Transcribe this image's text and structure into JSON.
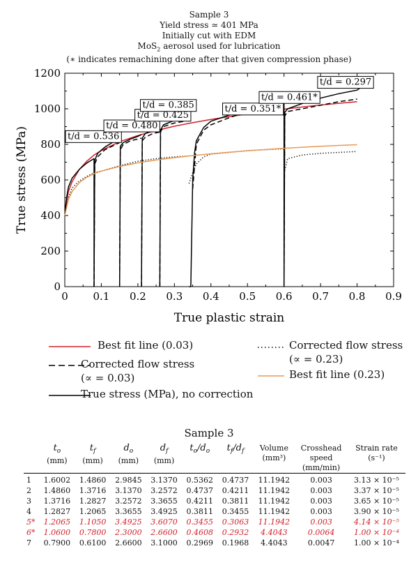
{
  "header": {
    "line1": "Sample 3",
    "line2": "Yield stress ≃ 401 MPa",
    "line3": "Initially cut with EDM",
    "line4_pre": "MoS",
    "line4_sub": "2",
    "line4_post": " aerosol used for lubrication",
    "line5": "(∗ indicates remachining done after that given compression phase)"
  },
  "chart_data": {
    "type": "line",
    "xlabel": "True plastic strain",
    "ylabel": "True stress (MPa)",
    "xlim": [
      0,
      0.9
    ],
    "ylim": [
      0,
      1200
    ],
    "xticks": [
      "0",
      "0.1",
      "0.2",
      "0.3",
      "0.4",
      "0.5",
      "0.6",
      "0.7",
      "0.8",
      "0.9"
    ],
    "yticks": [
      "0",
      "200",
      "400",
      "600",
      "800",
      "1000",
      "1200"
    ],
    "grid": false,
    "annotations": [
      {
        "text": "t/d = 0.536",
        "x": 0.0,
        "y": 830
      },
      {
        "text": "t/d = 0.480",
        "x": 0.105,
        "y": 890
      },
      {
        "text": "t/d = 0.425",
        "x": 0.19,
        "y": 950
      },
      {
        "text": "t/d = 0.385",
        "x": 0.205,
        "y": 1005
      },
      {
        "text": "t/d = 0.351*",
        "x": 0.43,
        "y": 985
      },
      {
        "text": "t/d = 0.461*",
        "x": 0.53,
        "y": 1050
      },
      {
        "text": "t/d = 0.297",
        "x": 0.69,
        "y": 1135
      }
    ],
    "series": [
      {
        "name": "Best fit line (0.03)",
        "color": "#d0202a",
        "style": "solid",
        "x": [
          0,
          0.01,
          0.02,
          0.04,
          0.06,
          0.08,
          0.1,
          0.15,
          0.2,
          0.25,
          0.3,
          0.35,
          0.4,
          0.45,
          0.5,
          0.55,
          0.6,
          0.65,
          0.7,
          0.75,
          0.8
        ],
        "y": [
          410,
          535,
          590,
          660,
          705,
          740,
          765,
          815,
          850,
          878,
          902,
          922,
          940,
          956,
          971,
          985,
          998,
          1010,
          1021,
          1031,
          1040
        ]
      },
      {
        "name": "Corrected flow stress (∝ = 0.03)",
        "color": "#000000",
        "style": "dashed",
        "segments": [
          {
            "x": [
              0.08,
              0.082,
              0.09,
              0.11,
              0.13,
              0.15
            ],
            "y": [
              0,
              690,
              730,
              770,
              790,
              810
            ]
          },
          {
            "x": [
              0.15,
              0.152,
              0.16,
              0.18,
              0.2,
              0.21
            ],
            "y": [
              0,
              770,
              800,
              820,
              830,
              835
            ]
          },
          {
            "x": [
              0.21,
              0.212,
              0.22,
              0.24,
              0.26
            ],
            "y": [
              0,
              820,
              840,
              860,
              870
            ]
          },
          {
            "x": [
              0.26,
              0.262,
              0.27,
              0.3,
              0.34
            ],
            "y": [
              0,
              870,
              900,
              920,
              935
            ]
          },
          {
            "x": [
              0.35,
              0.36,
              0.38,
              0.4,
              0.45,
              0.5,
              0.55,
              0.6
            ],
            "y": [
              550,
              800,
              880,
              910,
              950,
              985,
              1010,
              1030
            ]
          },
          {
            "x": [
              0.6,
              0.602,
              0.61,
              0.65,
              0.7,
              0.75,
              0.8
            ],
            "y": [
              0,
              960,
              985,
              1000,
              1020,
              1040,
              1055
            ]
          }
        ]
      },
      {
        "name": "True stress (MPa), no correction",
        "color": "#000000",
        "style": "solid",
        "segments": [
          {
            "x": [
              0,
              0.005,
              0.01,
              0.02,
              0.04,
              0.06,
              0.08
            ],
            "y": [
              410,
              500,
              560,
              610,
              660,
              695,
              720
            ]
          },
          {
            "x": [
              0.08,
              0.08,
              0.082,
              0.09,
              0.11,
              0.13,
              0.15
            ],
            "y": [
              720,
              0,
              710,
              750,
              785,
              810,
              830
            ]
          },
          {
            "x": [
              0.15,
              0.152,
              0.16,
              0.18,
              0.2,
              0.21
            ],
            "y": [
              0,
              790,
              810,
              830,
              845,
              855
            ]
          },
          {
            "x": [
              0.21,
              0.212,
              0.22,
              0.24,
              0.26
            ],
            "y": [
              0,
              835,
              860,
              880,
              895
            ]
          },
          {
            "x": [
              0.26,
              0.262,
              0.27,
              0.3,
              0.34
            ],
            "y": [
              0,
              880,
              910,
              935,
              950
            ]
          },
          {
            "x": [
              0.34,
              0.345,
              0.35,
              0.355,
              0.36,
              0.38,
              0.4,
              0.45,
              0.5,
              0.55,
              0.6
            ],
            "y": [
              0,
              0,
              600,
              750,
              820,
              895,
              930,
              965,
              1000,
              1025,
              1050
            ]
          },
          {
            "x": [
              0.6,
              0.6,
              0.602,
              0.61,
              0.65,
              0.7,
              0.75,
              0.8,
              0.81
            ],
            "y": [
              1050,
              0,
              980,
              1000,
              1030,
              1060,
              1085,
              1105,
              1120
            ]
          }
        ]
      },
      {
        "name": "Corrected flow stress (∝ = 0.23)",
        "color": "#000000",
        "style": "dotted",
        "segments": [
          {
            "x": [
              0,
              0.01,
              0.02,
              0.04,
              0.06,
              0.08
            ],
            "y": [
              400,
              500,
              555,
              595,
              620,
              640
            ]
          },
          {
            "x": [
              0.08,
              0.1,
              0.15,
              0.2,
              0.25,
              0.3,
              0.34
            ],
            "y": [
              640,
              650,
              680,
              705,
              720,
              730,
              735
            ]
          },
          {
            "x": [
              0.34,
              0.35,
              0.36,
              0.38,
              0.4,
              0.45,
              0.5,
              0.55,
              0.6
            ],
            "y": [
              580,
              640,
              690,
              730,
              745,
              755,
              765,
              770,
              775
            ]
          },
          {
            "x": [
              0.6,
              0.61,
              0.65,
              0.7,
              0.75,
              0.8
            ],
            "y": [
              640,
              720,
              740,
              750,
              755,
              760
            ]
          }
        ]
      },
      {
        "name": "Best fit line (0.23)",
        "color": "#e89a50",
        "style": "solid",
        "x": [
          0,
          0.01,
          0.02,
          0.04,
          0.06,
          0.08,
          0.1,
          0.15,
          0.2,
          0.25,
          0.3,
          0.35,
          0.4,
          0.45,
          0.5,
          0.55,
          0.6,
          0.65,
          0.7,
          0.75,
          0.8
        ],
        "y": [
          400,
          490,
          535,
          585,
          615,
          635,
          650,
          676,
          696,
          712,
          725,
          737,
          747,
          756,
          764,
          771,
          778,
          784,
          789,
          794,
          798
        ]
      }
    ]
  },
  "legend": {
    "best_fit_003": "Best fit line (0.03)",
    "corrected_003_a": "Corrected flow stress",
    "corrected_003_b": "(∝ = 0.03)",
    "true_stress": "True stress (MPa), no correction",
    "corrected_023_a": "Corrected flow stress",
    "corrected_023_b": "(∝ = 0.23)",
    "best_fit_023": "Best fit line (0.23)"
  },
  "table": {
    "title": "Sample 3",
    "headers": [
      {
        "main": "t",
        "sub": "o",
        "unit": "(mm)"
      },
      {
        "main": "t",
        "sub": "f",
        "unit": "(mm)"
      },
      {
        "main": "d",
        "sub": "o",
        "unit": "(mm)"
      },
      {
        "main": "d",
        "sub": "f",
        "unit": "(mm)"
      },
      {
        "main": "t",
        "sub": "o",
        "main2": "/d",
        "sub2": "o",
        "unit": ""
      },
      {
        "main": "t",
        "sub": "f",
        "main2": "/d",
        "sub2": "f",
        "unit": ""
      },
      {
        "main": "Volume",
        "unit": "(mm³)"
      },
      {
        "main": "Crosshead",
        "unit": "speed",
        "unit2": "(mm/min)"
      },
      {
        "main": "Strain rate",
        "unit": "(s⁻¹)"
      }
    ],
    "rows": [
      {
        "id": "1",
        "red": false,
        "v": [
          "1.6002",
          "1.4860",
          "2.9845",
          "3.1370",
          "0.5362",
          "0.4737",
          "11.1942",
          "0.003",
          "3.13 × 10⁻⁵"
        ]
      },
      {
        "id": "2",
        "red": false,
        "v": [
          "1.4860",
          "1.3716",
          "3.1370",
          "3.2572",
          "0.4737",
          "0.4211",
          "11.1942",
          "0.003",
          "3.37 × 10⁻⁵"
        ]
      },
      {
        "id": "3",
        "red": false,
        "v": [
          "1.3716",
          "1.2827",
          "3.2572",
          "3.3655",
          "0.4211",
          "0.3811",
          "11.1942",
          "0.003",
          "3.65 × 10⁻⁵"
        ]
      },
      {
        "id": "4",
        "red": false,
        "v": [
          "1.2827",
          "1.2065",
          "3.3655",
          "3.4925",
          "0.3811",
          "0.3455",
          "11.1942",
          "0.003",
          "3.90 × 10⁻⁵"
        ]
      },
      {
        "id": "5*",
        "red": true,
        "v": [
          "1.2065",
          "1.1050",
          "3.4925",
          "3.6070",
          "0.3455",
          "0.3063",
          "11.1942",
          "0.003",
          "4.14 × 10⁻⁵"
        ]
      },
      {
        "id": "6*",
        "red": true,
        "v": [
          "1.0600",
          "0.7800",
          "2.3000",
          "2.6600",
          "0.4608",
          "0.2932",
          "4.4043",
          "0.0064",
          "1.00 × 10⁻⁴"
        ]
      },
      {
        "id": "7",
        "red": false,
        "v": [
          "0.7900",
          "0.6100",
          "2.6600",
          "3.1000",
          "0.2969",
          "0.1968",
          "4.4043",
          "0.0047",
          "1.00 × 10⁻⁴"
        ]
      }
    ]
  }
}
